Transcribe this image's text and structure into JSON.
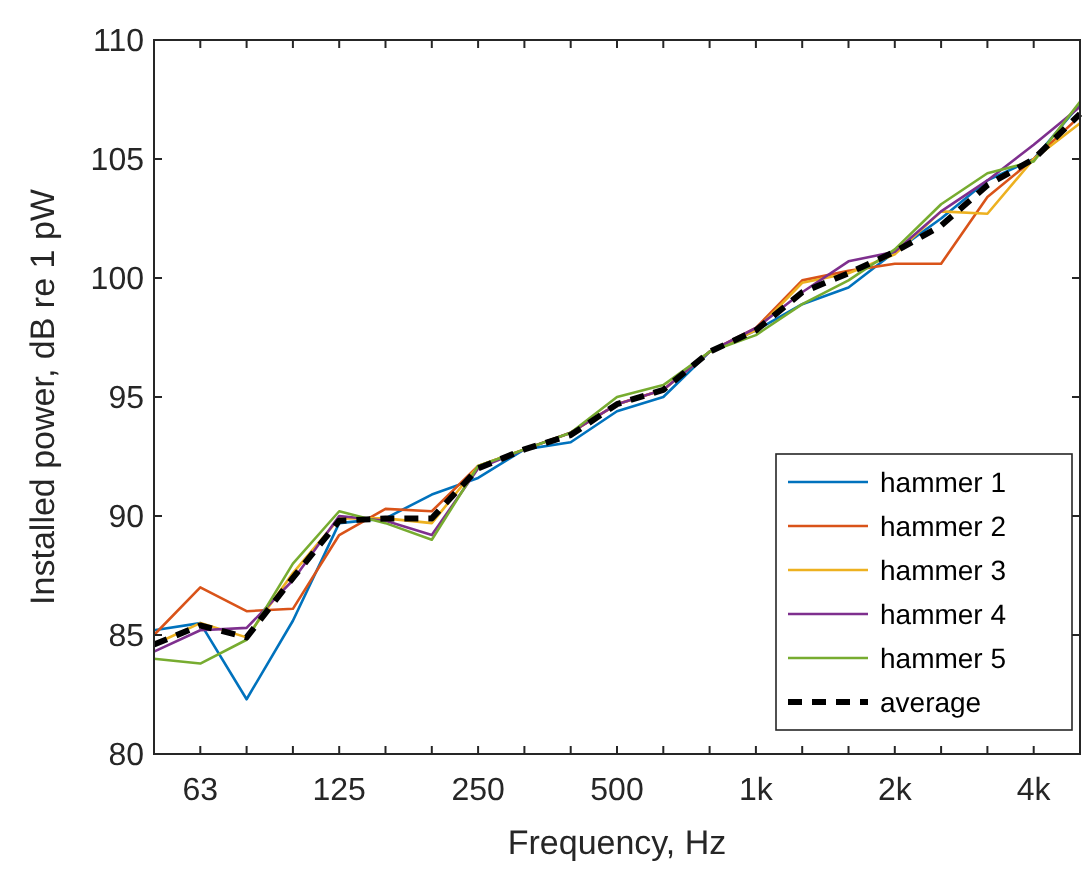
{
  "chart_data": {
    "type": "line",
    "xlabel": "Frequency, Hz",
    "ylabel": "Installed power, dB re 1 pW",
    "categories": [
      null,
      "63",
      null,
      null,
      "125",
      null,
      null,
      "250",
      null,
      null,
      "500",
      null,
      null,
      "1k",
      null,
      null,
      "2k",
      null,
      null,
      "4k",
      null
    ],
    "ylim": [
      80,
      110
    ],
    "yticks": [
      80,
      85,
      90,
      95,
      100,
      105,
      110
    ],
    "grid": false,
    "legend": "bottom right",
    "series": [
      {
        "name": "hammer 1",
        "color": "#0072bd",
        "values": [
          85.2,
          85.5,
          82.3,
          85.6,
          89.7,
          89.9,
          90.9,
          91.6,
          92.8,
          93.1,
          94.4,
          95.0,
          96.9,
          97.8,
          98.9,
          99.6,
          101.1,
          102.5,
          104.1,
          105.0,
          107.3
        ]
      },
      {
        "name": "hammer 2",
        "color": "#d95319",
        "values": [
          85.0,
          87.0,
          86.0,
          86.1,
          89.2,
          90.3,
          90.2,
          92.1,
          92.8,
          93.5,
          94.7,
          95.3,
          96.9,
          97.9,
          99.9,
          100.3,
          100.6,
          100.6,
          103.4,
          105.0,
          106.8
        ]
      },
      {
        "name": "hammer 3",
        "color": "#edb120",
        "values": [
          84.6,
          85.5,
          84.9,
          87.6,
          89.9,
          89.9,
          89.7,
          92.1,
          92.8,
          93.5,
          94.7,
          95.3,
          96.9,
          97.8,
          99.8,
          100.2,
          101.0,
          102.8,
          102.7,
          105.0,
          106.5
        ]
      },
      {
        "name": "hammer 4",
        "color": "#7e2f8e",
        "values": [
          84.3,
          85.2,
          85.3,
          87.3,
          90.0,
          89.8,
          89.2,
          92.0,
          92.8,
          93.5,
          94.7,
          95.3,
          96.9,
          97.9,
          99.4,
          100.7,
          101.1,
          102.8,
          104.1,
          105.6,
          107.2
        ]
      },
      {
        "name": "hammer 5",
        "color": "#77ac30",
        "values": [
          84.0,
          83.8,
          84.8,
          88.0,
          90.2,
          89.7,
          89.0,
          92.1,
          92.8,
          93.5,
          95.0,
          95.5,
          96.9,
          97.6,
          98.9,
          99.9,
          101.2,
          103.1,
          104.4,
          104.9,
          107.4
        ]
      },
      {
        "name": "average",
        "color": "#000000",
        "line_style": "dashed",
        "values": [
          84.6,
          85.4,
          84.9,
          87.4,
          89.8,
          89.9,
          89.9,
          92.0,
          92.8,
          93.4,
          94.7,
          95.3,
          96.9,
          97.8,
          99.4,
          100.2,
          101.1,
          102.2,
          103.9,
          105.0,
          106.9
        ]
      }
    ]
  }
}
